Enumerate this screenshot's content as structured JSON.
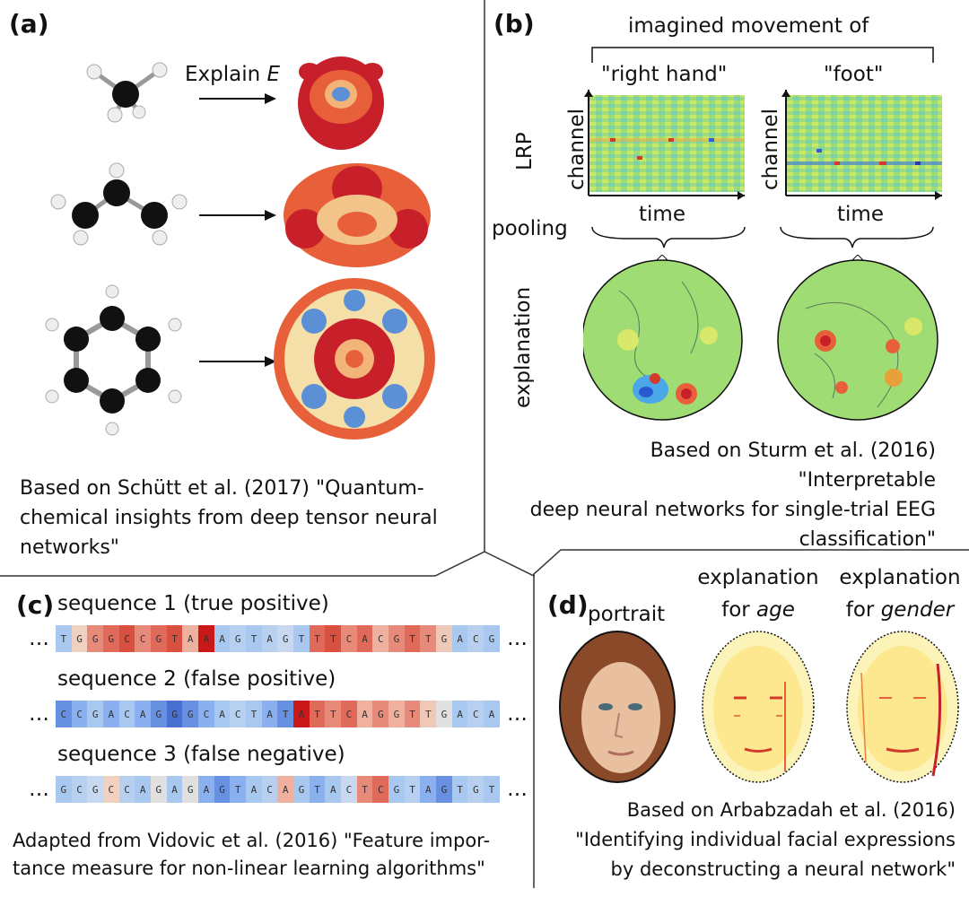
{
  "panel_a": {
    "label": "(a)",
    "arrow_label_prefix": "Explain ",
    "arrow_label_var": "E",
    "caption": "Based on Schütt et al. (2017) \"Quantum-chemical insights from deep tensor neural networks\"",
    "caption_lines": [
      "Based on Schütt et al. (2017) \"Quantum-",
      "chemical insights from deep tensor neural",
      "networks\""
    ]
  },
  "panel_b": {
    "label": "(b)",
    "header": "imagined movement of",
    "col1": "\"right hand\"",
    "col2": "\"foot\"",
    "row_lrp": "LRP",
    "row_pooling": "pooling",
    "row_explanation": "explanation",
    "axis_channel": "channel",
    "axis_time": "time",
    "caption_lines": [
      "Based on Sturm et al. (2016) \"Interpretable",
      "deep neural networks for single-trial EEG",
      "classification\""
    ]
  },
  "panel_c": {
    "label": "(c)",
    "seq1_title": "sequence 1 (true positive)",
    "seq2_title": "sequence 2 (false positive)",
    "seq3_title": "sequence 3 (false negative)",
    "seq1": "TGGGCCGTAAAGTAGTTTCACGTTGACG",
    "seq2": "CCGACAGGGCACTATATTCAGGTTGACA",
    "seq3": "GCGCCAGAGAGTACAGTACTCGTAGTGT",
    "ellipsis": "…",
    "caption_lines": [
      "Adapted from Vidovic et al. (2016)  \"Feature impor-",
      "tance measure for non-linear learning algorithms\""
    ]
  },
  "panel_d": {
    "label": "(d)",
    "portrait": "portrait",
    "col2_line1": "explanation",
    "col2_line2_prefix": "for ",
    "col2_line2_var": "age",
    "col3_line1": "explanation",
    "col3_line2_prefix": "for ",
    "col3_line2_var": "gender",
    "caption_lines": [
      "Based on Arbabzadah et al. (2016)",
      "\"Identifying individual facial expressions",
      "by deconstructing a neural network\""
    ]
  },
  "colors": {
    "red": "#c8202a",
    "orange": "#e8603a",
    "blue": "#5b8fd6",
    "yellow": "#f7f07a",
    "green": "#8fd06a"
  }
}
